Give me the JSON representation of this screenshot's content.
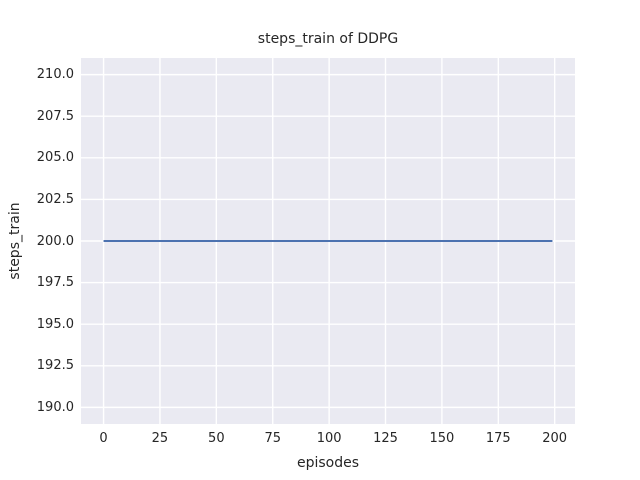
{
  "figure": {
    "background": "#ffffff"
  },
  "chart_data": {
    "type": "line",
    "title": "steps_train of DDPG",
    "xlabel": "episodes",
    "ylabel": "steps_train",
    "xlim": [
      -10,
      209
    ],
    "ylim": [
      189,
      211
    ],
    "xtick_values": [
      0,
      25,
      50,
      75,
      100,
      125,
      150,
      175,
      200
    ],
    "xtick_labels": [
      "0",
      "25",
      "50",
      "75",
      "100",
      "125",
      "150",
      "175",
      "200"
    ],
    "ytick_values": [
      190,
      192.5,
      195,
      197.5,
      200,
      202.5,
      205,
      207.5,
      210
    ],
    "ytick_labels": [
      "190.0",
      "192.5",
      "195.0",
      "197.5",
      "200.0",
      "202.5",
      "205.0",
      "207.5",
      "210.0"
    ],
    "grid": "on",
    "legend": "none",
    "axes_background": "#eaeaf2",
    "grid_color": "#ffffff",
    "text_color": "#262626",
    "series": [
      {
        "name": "steps_train",
        "color": "#4c72b0",
        "x": [
          0,
          199
        ],
        "y": [
          200,
          200
        ]
      }
    ]
  }
}
